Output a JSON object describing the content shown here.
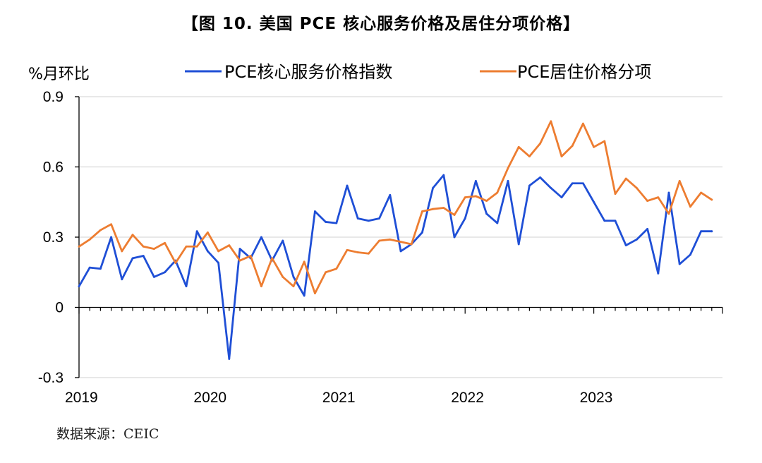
{
  "title": "【图 10. 美国 PCE 核心服务价格及居住分项价格】",
  "source": "数据来源：CEIC",
  "chart_data": {
    "type": "line",
    "unit_label": "%月环比",
    "ylim": [
      -0.3,
      0.9
    ],
    "yticks": [
      -0.3,
      0,
      0.3,
      0.6,
      0.9
    ],
    "ytick_labels": [
      "-0.3",
      "0",
      "0.3",
      "0.6",
      "0.9"
    ],
    "xlim": [
      "2019-01",
      "2023-12"
    ],
    "xticks": [
      "2019",
      "2020",
      "2021",
      "2022",
      "2023"
    ],
    "grid": "horizontal",
    "legend_position": "top",
    "series": [
      {
        "name": "PCE核心服务价格指数",
        "color": "#1f4fd6",
        "x": [
          "2019-01",
          "2019-02",
          "2019-03",
          "2019-04",
          "2019-05",
          "2019-06",
          "2019-07",
          "2019-08",
          "2019-09",
          "2019-10",
          "2019-11",
          "2019-12",
          "2020-01",
          "2020-02",
          "2020-03",
          "2020-04",
          "2020-05",
          "2020-06",
          "2020-07",
          "2020-08",
          "2020-09",
          "2020-10",
          "2020-11",
          "2020-12",
          "2021-01",
          "2021-02",
          "2021-03",
          "2021-04",
          "2021-05",
          "2021-06",
          "2021-07",
          "2021-08",
          "2021-09",
          "2021-10",
          "2021-11",
          "2021-12",
          "2022-01",
          "2022-02",
          "2022-03",
          "2022-04",
          "2022-05",
          "2022-06",
          "2022-07",
          "2022-08",
          "2022-09",
          "2022-10",
          "2022-11",
          "2022-12",
          "2023-01",
          "2023-02",
          "2023-03",
          "2023-04",
          "2023-05",
          "2023-06",
          "2023-07",
          "2023-08",
          "2023-09",
          "2023-10",
          "2023-11",
          "2023-12"
        ],
        "values": [
          0.09,
          0.17,
          0.165,
          0.3,
          0.12,
          0.21,
          0.22,
          0.13,
          0.15,
          0.2,
          0.09,
          0.325,
          0.24,
          0.19,
          -0.22,
          0.25,
          0.21,
          0.3,
          0.2,
          0.285,
          0.13,
          0.05,
          0.41,
          0.365,
          0.36,
          0.52,
          0.38,
          0.37,
          0.38,
          0.48,
          0.24,
          0.27,
          0.32,
          0.51,
          0.565,
          0.3,
          0.38,
          0.54,
          0.4,
          0.36,
          0.54,
          0.27,
          0.52,
          0.555,
          0.51,
          0.47,
          0.53,
          0.53,
          0.45,
          0.37,
          0.37,
          0.265,
          0.29,
          0.335,
          0.145,
          0.49,
          0.185,
          0.225,
          0.325,
          0.325
        ]
      },
      {
        "name": "PCE居住价格分项",
        "color": "#ed7d31",
        "x": [
          "2019-01",
          "2019-02",
          "2019-03",
          "2019-04",
          "2019-05",
          "2019-06",
          "2019-07",
          "2019-08",
          "2019-09",
          "2019-10",
          "2019-11",
          "2019-12",
          "2020-01",
          "2020-02",
          "2020-03",
          "2020-04",
          "2020-05",
          "2020-06",
          "2020-07",
          "2020-08",
          "2020-09",
          "2020-10",
          "2020-11",
          "2020-12",
          "2021-01",
          "2021-02",
          "2021-03",
          "2021-04",
          "2021-05",
          "2021-06",
          "2021-07",
          "2021-08",
          "2021-09",
          "2021-10",
          "2021-11",
          "2021-12",
          "2022-01",
          "2022-02",
          "2022-03",
          "2022-04",
          "2022-05",
          "2022-06",
          "2022-07",
          "2022-08",
          "2022-09",
          "2022-10",
          "2022-11",
          "2022-12",
          "2023-01",
          "2023-02",
          "2023-03",
          "2023-04",
          "2023-05",
          "2023-06",
          "2023-07",
          "2023-08",
          "2023-09",
          "2023-10",
          "2023-11",
          "2023-12"
        ],
        "values": [
          0.26,
          0.29,
          0.33,
          0.355,
          0.24,
          0.31,
          0.26,
          0.25,
          0.275,
          0.19,
          0.26,
          0.26,
          0.32,
          0.24,
          0.265,
          0.2,
          0.22,
          0.09,
          0.21,
          0.13,
          0.09,
          0.195,
          0.06,
          0.15,
          0.165,
          0.245,
          0.235,
          0.23,
          0.285,
          0.29,
          0.28,
          0.27,
          0.41,
          0.42,
          0.425,
          0.395,
          0.47,
          0.475,
          0.455,
          0.49,
          0.595,
          0.685,
          0.645,
          0.7,
          0.795,
          0.645,
          0.69,
          0.785,
          0.685,
          0.71,
          0.485,
          0.55,
          0.51,
          0.455,
          0.47,
          0.4,
          0.54,
          0.43,
          0.49,
          0.46
        ]
      }
    ]
  }
}
